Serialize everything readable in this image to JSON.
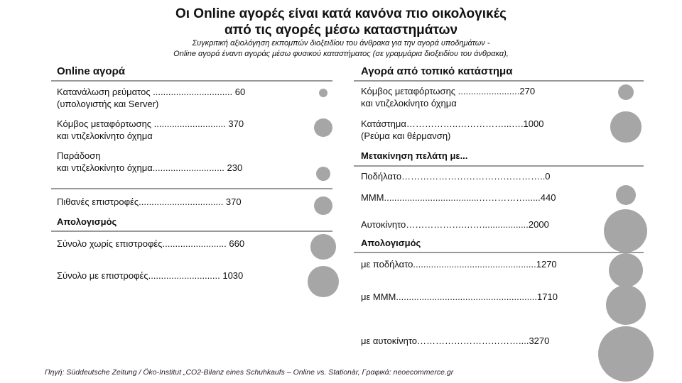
{
  "title_line1": "Οι Online αγορές είναι κατά κανόνα πιο οικολογικές",
  "title_line2": "από τις αγορές μέσω καταστημάτων",
  "subtitle_line1": "Συγκριτική αξιολόγηση εκπομπών διοξειδίου του άνθρακα για την αγορά υποδημάτων -",
  "subtitle_line2": "Online αγορά έναντι αγοράς μέσω φυσικού καταστήματος (σε γραμμάρια διοξειδίου του άνθρακα),",
  "left": {
    "header": "Online αγορά",
    "r1a": "Κατανάλωση ρεύματος ............................... 60",
    "r1b": "(υπολογιστής και Server)",
    "r2a": "Κόμβος μεταφόρτωσης ............................ 370",
    "r2b": "και ντιζελοκίνητο όχημα",
    "r3a": "Παράδοση",
    "r3b": "και ντιζελοκίνητο όχημα............................ 230",
    "r4": "Πιθανές επιστροφές................................. 370",
    "section": "Απολογισμός",
    "r5": "Σύνολο χωρίς επιστροφές......................... 660",
    "r6": "Σύνολο με επιστροφές............................ 1030"
  },
  "right": {
    "header": "Αγορά από τοπικό κατάστημα",
    "r1a": "Κόμβος μεταφόρτωσης ........................270",
    "r1b": "και ντιζελοκίνητο όχημα",
    "r2a": "Κατάστημα……………..……………...….1000",
    "r2b": "(Ρεύμα και θέρμανση)",
    "section1": "Μετακίνηση πελάτη με...",
    "r3": "Ποδήλατο………………………………………..0",
    "r4": "ΜΜΜ.....................................……………......440",
    "r5": "Αυτοκίνητο……………….……..................2000",
    "section2": "Απολογισμός",
    "r6": "με ποδήλατο................................................1270",
    "r7": "με ΜΜΜ.......................................................1710",
    "r8": "με αυτοκίνητο……………………………....3270"
  },
  "source": "Πηγή: Süddeutsche Zeitung / Öko-Institut „CO2-Bilanz eines Schuhkaufs – Online vs. Stationär, Γραφικά: neoecommerce.gr",
  "chart_data": {
    "type": "bubble",
    "unit": "g CO2",
    "bubble_color": "#a6a6a6",
    "series": [
      {
        "name": "Online αγορά",
        "values": [
          60,
          370,
          230,
          370,
          660,
          1030
        ]
      },
      {
        "name": "Αγορά από τοπικό κατάστημα",
        "values": [
          270,
          1000,
          0,
          440,
          2000,
          1270,
          1710,
          3270
        ]
      }
    ]
  }
}
